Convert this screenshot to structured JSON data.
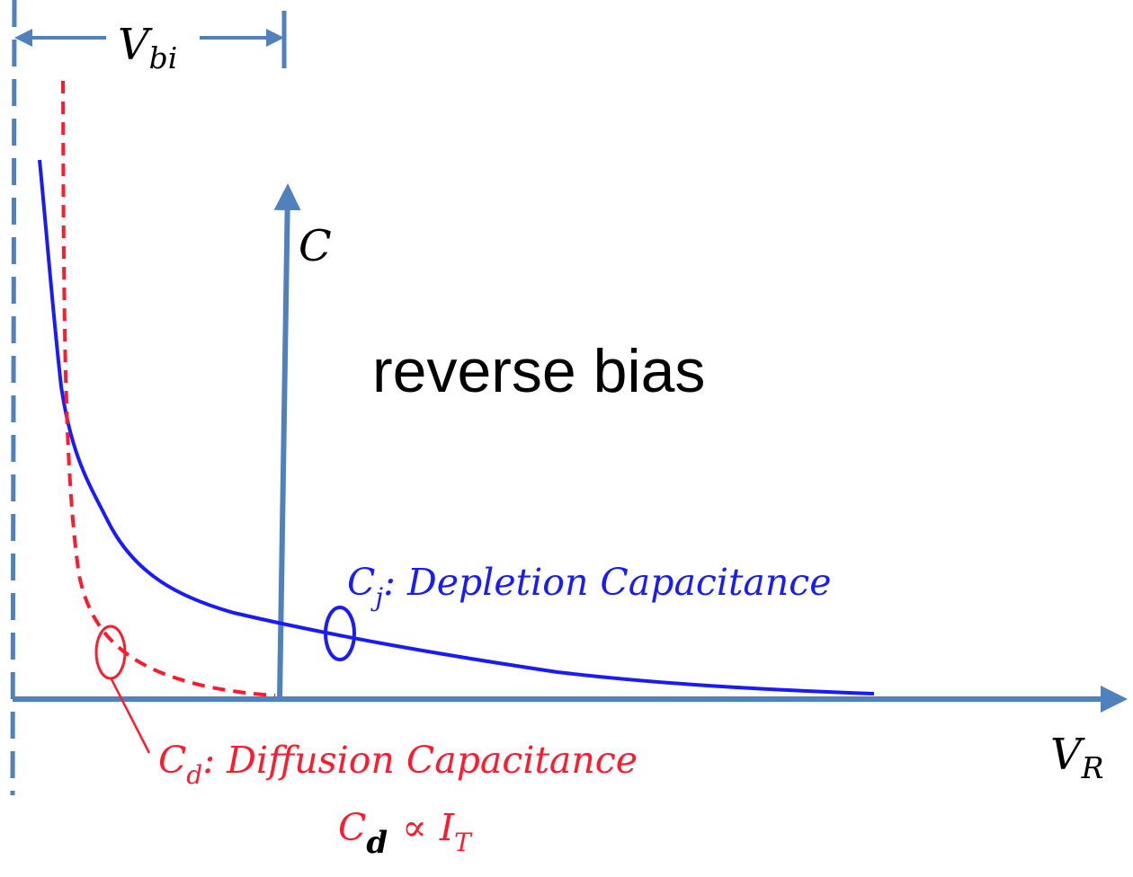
{
  "labels": {
    "vbi": {
      "main": "V",
      "sub": "bi"
    },
    "c_axis": "C",
    "vr_axis": {
      "main": "V",
      "sub": "R"
    },
    "region": "reverse bias",
    "cj": {
      "main": "C",
      "sub": "j",
      "text": ": Depletion Capacitance"
    },
    "cd": {
      "main": "C",
      "sub": "d",
      "text": ": Diffusion Capacitance"
    },
    "prop": {
      "main": "C",
      "sub": "d",
      "symbol": "∝",
      "rhs": "I",
      "rhs_sub": "T"
    }
  },
  "colors": {
    "axis": "#4f81bd",
    "depletion": "#1a1aff",
    "diffusion": "#ff1a2e",
    "text": "#000000"
  }
}
